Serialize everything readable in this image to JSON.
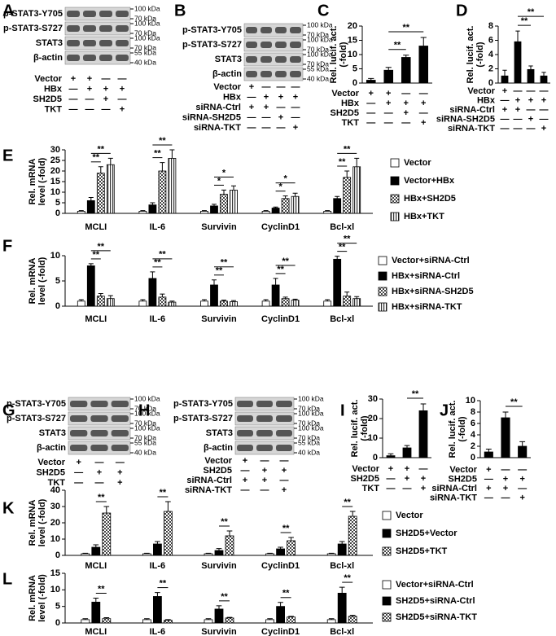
{
  "blots": [
    {
      "label": "A",
      "rows": [
        "p-STAT3-Y705",
        "p-STAT3-S727",
        "STAT3",
        "β-actin"
      ],
      "markers": [
        "100 kDa",
        "70 kDa",
        "100 kDa",
        "70 kDa",
        "100 kDa",
        "70 kDa",
        "55 kDa",
        "40 kDa"
      ],
      "conditions": [
        {
          "name": "Vector",
          "marks": [
            "+",
            "+",
            "—",
            "—"
          ]
        },
        {
          "name": "HBx",
          "marks": [
            "—",
            "+",
            "+",
            "+"
          ]
        },
        {
          "name": "SH2D5",
          "marks": [
            "—",
            "—",
            "+",
            "—"
          ]
        },
        {
          "name": "TKT",
          "marks": [
            "—",
            "—",
            "—",
            "+"
          ]
        }
      ]
    },
    {
      "label": "B",
      "rows": [
        "p-STAT3-Y705",
        "p-STAT3-S727",
        "STAT3",
        "β-actin"
      ],
      "markers": [
        "100 kDa",
        "70 kDa",
        "100 kDa",
        "70 kDa",
        "100 kDa",
        "70 kDa",
        "55 kDa",
        "40 kDa"
      ],
      "conditions": [
        {
          "name": "Vector",
          "marks": [
            "+",
            "—",
            "—",
            "—"
          ]
        },
        {
          "name": "HBx",
          "marks": [
            "—",
            "+",
            "+",
            "+"
          ]
        },
        {
          "name": "siRNA-Ctrl",
          "marks": [
            "+",
            "+",
            "—",
            "—"
          ]
        },
        {
          "name": "siRNA-SH2D5",
          "marks": [
            "—",
            "—",
            "+",
            "—"
          ]
        },
        {
          "name": "siRNA-TKT",
          "marks": [
            "—",
            "—",
            "—",
            "+"
          ]
        }
      ]
    },
    {
      "label": "G",
      "rows": [
        "p-STAT3-Y705",
        "p-STAT3-S727",
        "STAT3",
        "β-actin"
      ],
      "markers": [
        "100 kDa",
        "70 kDa",
        "100 kDa",
        "70 kDa",
        "100 kDa",
        "70 kDa",
        "55 kDa",
        "40 kDa"
      ],
      "conditions": [
        {
          "name": "Vector",
          "marks": [
            "+",
            "—",
            "—"
          ]
        },
        {
          "name": "SH2D5",
          "marks": [
            "—",
            "+",
            "+"
          ]
        },
        {
          "name": "TKT",
          "marks": [
            "—",
            "—",
            "+"
          ]
        }
      ]
    },
    {
      "label": "H",
      "rows": [
        "p-STAT3-Y705",
        "p-STAT3-S727",
        "STAT3",
        "β-actin"
      ],
      "markers": [
        "100 kDa",
        "70 kDa",
        "100 kDa",
        "70 kDa",
        "100 kDa",
        "70 kDa",
        "55 kDa",
        "40 kDa"
      ],
      "conditions": [
        {
          "name": "Vector",
          "marks": [
            "+",
            "—",
            "—"
          ]
        },
        {
          "name": "SH2D5",
          "marks": [
            "—",
            "+",
            "+"
          ]
        },
        {
          "name": "siRNA-Ctrl",
          "marks": [
            "+",
            "+",
            "—"
          ]
        },
        {
          "name": "siRNA-TKT",
          "marks": [
            "—",
            "—",
            "+"
          ]
        }
      ]
    }
  ],
  "chart_data": [
    {
      "type": "bar",
      "label": "C",
      "ylabel": [
        "Rel. lucif. act.",
        "(-fold)"
      ],
      "values": [
        1,
        4.5,
        9,
        13
      ],
      "errors": [
        0.6,
        1,
        0.8,
        3
      ],
      "color": "#000000",
      "ylim": [
        0,
        20
      ],
      "yticks": [
        0,
        5,
        10,
        15,
        20
      ],
      "conditions": [
        {
          "name": "Vector",
          "marks": [
            "+",
            "+",
            "—",
            "—"
          ]
        },
        {
          "name": "HBx",
          "marks": [
            "—",
            "+",
            "+",
            "+"
          ]
        },
        {
          "name": "SH2D5",
          "marks": [
            "—",
            "—",
            "+",
            "—"
          ]
        },
        {
          "name": "TKT",
          "marks": [
            "—",
            "—",
            "—",
            "+"
          ]
        }
      ],
      "significance": [
        {
          "between": [
            1,
            2
          ],
          "label": "**"
        },
        {
          "between": [
            1,
            3
          ],
          "label": "**"
        }
      ]
    },
    {
      "type": "bar",
      "label": "D",
      "ylabel": [
        "Rel. lucif. act.",
        "(-fold)"
      ],
      "values": [
        1,
        5.8,
        1.9,
        1
      ],
      "errors": [
        0.8,
        1.5,
        0.5,
        0.5
      ],
      "color": "#000000",
      "ylim": [
        0,
        8
      ],
      "yticks": [
        0,
        2,
        4,
        6,
        8
      ],
      "conditions": [
        {
          "name": "Vector",
          "marks": [
            "+",
            "—",
            "—",
            "—"
          ]
        },
        {
          "name": "HBx",
          "marks": [
            "—",
            "+",
            "+",
            "+"
          ]
        },
        {
          "name": "siRNA-Ctrl",
          "marks": [
            "+",
            "+",
            "—",
            "—"
          ]
        },
        {
          "name": "siRNA-SH2D5",
          "marks": [
            "—",
            "—",
            "+",
            "—"
          ]
        },
        {
          "name": "siRNA-TKT",
          "marks": [
            "—",
            "—",
            "—",
            "+"
          ]
        }
      ],
      "significance": [
        {
          "between": [
            1,
            2
          ],
          "label": "**"
        },
        {
          "between": [
            1,
            3
          ],
          "label": "**"
        }
      ]
    },
    {
      "type": "grouped_bar",
      "label": "E",
      "ylabel": [
        "Rel. mRNA",
        "level (-fold)"
      ],
      "categories": [
        "MCLI",
        "IL-6",
        "Survivin",
        "CyclinD1",
        "Bcl-xl"
      ],
      "ylim": [
        0,
        30
      ],
      "yticks": [
        0,
        5,
        10,
        15,
        20,
        25,
        30
      ],
      "series": [
        {
          "name": "Vector",
          "fill": "white",
          "values": [
            1,
            1,
            1,
            1,
            1
          ],
          "errors": [
            0.3,
            0.3,
            0.3,
            0.3,
            0.3
          ]
        },
        {
          "name": "Vector+HBx",
          "fill": "black",
          "values": [
            6,
            4,
            3.5,
            2.5,
            7
          ],
          "errors": [
            1.5,
            1,
            0.8,
            0.5,
            1
          ]
        },
        {
          "name": "HBx+SH2D5",
          "fill": "checker",
          "values": [
            19,
            20,
            9,
            7,
            17
          ],
          "errors": [
            3,
            4,
            2,
            1.2,
            3
          ]
        },
        {
          "name": "HBx+TKT",
          "fill": "stripes",
          "values": [
            23,
            26,
            11,
            8,
            22
          ],
          "errors": [
            3,
            4,
            2,
            1.5,
            4
          ]
        }
      ],
      "significance": [
        {
          "category": 0,
          "between": [
            1,
            2
          ],
          "label": "**"
        },
        {
          "category": 0,
          "between": [
            1,
            3
          ],
          "label": "**"
        },
        {
          "category": 1,
          "between": [
            1,
            2
          ],
          "label": "**"
        },
        {
          "category": 1,
          "between": [
            1,
            3
          ],
          "label": "**"
        },
        {
          "category": 2,
          "between": [
            1,
            2
          ],
          "label": "*"
        },
        {
          "category": 2,
          "between": [
            1,
            3
          ],
          "label": "*"
        },
        {
          "category": 3,
          "between": [
            1,
            2
          ],
          "label": "*"
        },
        {
          "category": 3,
          "between": [
            1,
            3
          ],
          "label": "*"
        },
        {
          "category": 4,
          "between": [
            1,
            2
          ],
          "label": "**"
        },
        {
          "category": 4,
          "between": [
            1,
            3
          ],
          "label": "**"
        }
      ]
    },
    {
      "type": "grouped_bar",
      "label": "F",
      "ylabel": [
        "Rel. mRNA",
        "level (-fold)"
      ],
      "categories": [
        "MCLI",
        "IL-6",
        "Survivin",
        "CyclinD1",
        "Bcl-xl"
      ],
      "ylim": [
        0,
        10
      ],
      "yticks": [
        0,
        5,
        10
      ],
      "series": [
        {
          "name": "Vector+siRNA-Ctrl",
          "fill": "white",
          "values": [
            1,
            1,
            1,
            1,
            1
          ],
          "errors": [
            0.3,
            0.3,
            0.3,
            0.3,
            0.3
          ]
        },
        {
          "name": "HBx+siRNA-Ctrl",
          "fill": "black",
          "values": [
            8,
            5.5,
            4.2,
            4.2,
            9.3
          ],
          "errors": [
            0.4,
            1.3,
            1,
            1.3,
            0.6
          ]
        },
        {
          "name": "HBx+siRNA-SH2D5",
          "fill": "checker",
          "values": [
            2,
            1.8,
            1,
            1.5,
            2
          ],
          "errors": [
            0.5,
            0.6,
            0.2,
            0.3,
            0.8
          ]
        },
        {
          "name": "HBx+siRNA-TKT",
          "fill": "stripes",
          "values": [
            1.5,
            0.8,
            0.9,
            1.2,
            1.5
          ],
          "errors": [
            0.6,
            0.2,
            0.2,
            0.2,
            0.4
          ]
        }
      ],
      "significance": [
        {
          "category": 0,
          "between": [
            1,
            2
          ],
          "label": "**"
        },
        {
          "category": 0,
          "between": [
            1,
            3
          ],
          "label": "**"
        },
        {
          "category": 1,
          "between": [
            1,
            2
          ],
          "label": "**"
        },
        {
          "category": 1,
          "between": [
            1,
            3
          ],
          "label": "**"
        },
        {
          "category": 2,
          "between": [
            1,
            2
          ],
          "label": "**"
        },
        {
          "category": 2,
          "between": [
            1,
            3
          ],
          "label": "**"
        },
        {
          "category": 3,
          "between": [
            1,
            2
          ],
          "label": "**"
        },
        {
          "category": 3,
          "between": [
            1,
            3
          ],
          "label": "**"
        },
        {
          "category": 4,
          "between": [
            1,
            2
          ],
          "label": "**"
        },
        {
          "category": 4,
          "between": [
            1,
            3
          ],
          "label": "**"
        }
      ]
    },
    {
      "type": "bar",
      "label": "I",
      "ylabel": [
        "Rel. lucif. act.",
        "(-fold)"
      ],
      "values": [
        1,
        5,
        24
      ],
      "errors": [
        1,
        1.2,
        3.5
      ],
      "color": "#000000",
      "ylim": [
        0,
        30
      ],
      "yticks": [
        0,
        10,
        20,
        30
      ],
      "conditions": [
        {
          "name": "Vector",
          "marks": [
            "+",
            "+",
            "—"
          ]
        },
        {
          "name": "SH2D5",
          "marks": [
            "—",
            "+",
            "+"
          ]
        },
        {
          "name": "TKT",
          "marks": [
            "—",
            "—",
            "+"
          ]
        }
      ],
      "significance": [
        {
          "between": [
            1,
            2
          ],
          "label": "**"
        }
      ]
    },
    {
      "type": "bar",
      "label": "J",
      "ylabel": [
        "Rel. lucif. act.",
        "(-fold)"
      ],
      "values": [
        1,
        7,
        2
      ],
      "errors": [
        0.5,
        1,
        0.8
      ],
      "color": "#000000",
      "ylim": [
        0,
        10
      ],
      "yticks": [
        0,
        2,
        4,
        6,
        8,
        10
      ],
      "conditions": [
        {
          "name": "Vector",
          "marks": [
            "+",
            "—",
            "—"
          ]
        },
        {
          "name": "SH2D5",
          "marks": [
            "—",
            "+",
            "+"
          ]
        },
        {
          "name": "siRNA-Ctrl",
          "marks": [
            "+",
            "+",
            "—"
          ]
        },
        {
          "name": "siRNA-TKT",
          "marks": [
            "—",
            "—",
            "+"
          ]
        }
      ],
      "significance": [
        {
          "between": [
            1,
            2
          ],
          "label": "**"
        }
      ]
    },
    {
      "type": "grouped_bar",
      "label": "K",
      "ylabel": [
        "Rel. mRNA",
        "level (-fold)"
      ],
      "categories": [
        "MCLI",
        "IL-6",
        "Survivin",
        "CyclinD1",
        "Bcl-xl"
      ],
      "ylim": [
        0,
        40
      ],
      "yticks": [
        0,
        10,
        20,
        30,
        40
      ],
      "series": [
        {
          "name": "Vector",
          "fill": "white",
          "values": [
            1,
            1,
            1,
            1,
            1
          ],
          "errors": [
            0.3,
            0.3,
            0.3,
            0.3,
            0.3
          ]
        },
        {
          "name": "SH2D5+Vector",
          "fill": "black",
          "values": [
            5,
            7,
            3,
            4,
            7
          ],
          "errors": [
            1.5,
            1.5,
            1.2,
            1,
            1.5
          ]
        },
        {
          "name": "SH2D5+TKT",
          "fill": "checker",
          "values": [
            26,
            27,
            12,
            9,
            24
          ],
          "errors": [
            4,
            6,
            3,
            2,
            3
          ]
        }
      ],
      "significance": [
        {
          "category": 0,
          "between": [
            1,
            2
          ],
          "label": "**"
        },
        {
          "category": 1,
          "between": [
            1,
            2
          ],
          "label": "**"
        },
        {
          "category": 2,
          "between": [
            1,
            2
          ],
          "label": "**"
        },
        {
          "category": 3,
          "between": [
            1,
            2
          ],
          "label": "**"
        },
        {
          "category": 4,
          "between": [
            1,
            2
          ],
          "label": "**"
        }
      ]
    },
    {
      "type": "grouped_bar",
      "label": "L",
      "ylabel": [
        "Rel. mRNA",
        "level (-fold)"
      ],
      "categories": [
        "MCLI",
        "IL-6",
        "Survivin",
        "CyclinD1",
        "Bcl-xl"
      ],
      "ylim": [
        0,
        15
      ],
      "yticks": [
        0,
        5,
        10,
        15
      ],
      "series": [
        {
          "name": "Vector+siRNA-Ctrl",
          "fill": "white",
          "values": [
            1,
            1,
            1,
            1,
            1
          ],
          "errors": [
            0.3,
            0.3,
            0.3,
            0.3,
            0.3
          ]
        },
        {
          "name": "SH2D5+siRNA-Ctrl",
          "fill": "black",
          "values": [
            6.3,
            8,
            4.2,
            5,
            9
          ],
          "errors": [
            1.2,
            1.2,
            1,
            1.2,
            1.8
          ]
        },
        {
          "name": "SH2D5+siRNA-TKT",
          "fill": "checker",
          "values": [
            1.3,
            0.8,
            1.5,
            1.8,
            2
          ],
          "errors": [
            0.3,
            0.2,
            0.2,
            0.2,
            0.3
          ]
        }
      ],
      "significance": [
        {
          "category": 0,
          "between": [
            1,
            2
          ],
          "label": "**"
        },
        {
          "category": 1,
          "between": [
            1,
            2
          ],
          "label": "**"
        },
        {
          "category": 2,
          "between": [
            1,
            2
          ],
          "label": "**"
        },
        {
          "category": 3,
          "between": [
            1,
            2
          ],
          "label": "**"
        },
        {
          "category": 4,
          "between": [
            1,
            2
          ],
          "label": "**"
        }
      ]
    }
  ]
}
